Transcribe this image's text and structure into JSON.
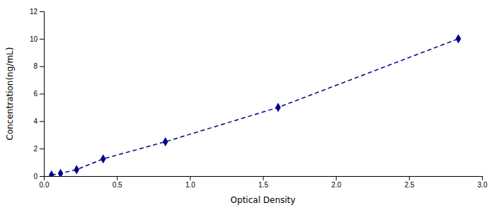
{
  "chart_data": {
    "type": "line",
    "xlabel": "Optical Density",
    "ylabel": "Concentration(ng/mL)",
    "x": [
      0.052,
      0.114,
      0.224,
      0.406,
      0.832,
      1.604,
      2.838
    ],
    "values": [
      0.078,
      0.195,
      0.468,
      1.25,
      2.5,
      5.0,
      10.0
    ],
    "color": "#00008B",
    "marker": "diamond",
    "line_style": "dashed",
    "grid": false,
    "xlim": [
      0,
      3.0
    ],
    "ylim": [
      0,
      12
    ],
    "xticks": [
      {
        "value": 0,
        "label": "0.0"
      },
      0.5,
      {
        "value": 1,
        "label": "1.0"
      },
      1.5,
      {
        "value": 2,
        "label": "2.0"
      },
      2.5,
      {
        "value": 3,
        "label": "3.0"
      }
    ],
    "yticks": [
      0,
      2,
      4,
      6,
      8,
      10,
      12
    ]
  }
}
